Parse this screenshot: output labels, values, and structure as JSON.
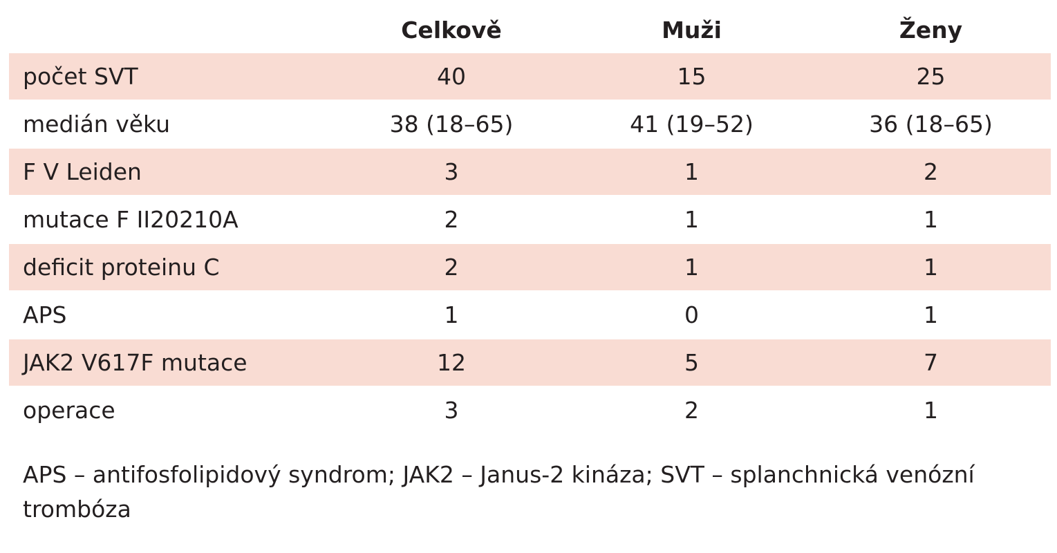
{
  "table": {
    "headers": [
      "",
      "Celkově",
      "Muži",
      "Ženy"
    ],
    "rows": [
      {
        "label": "počet SVT",
        "celkove": "40",
        "muzi": "15",
        "zeny": "25",
        "shaded": true
      },
      {
        "label": "medián věku",
        "celkove": "38 (18–65)",
        "muzi": "41 (19–52)",
        "zeny": "36 (18–65)",
        "shaded": false
      },
      {
        "label": "F V Leiden",
        "celkove": "3",
        "muzi": "1",
        "zeny": "2",
        "shaded": true
      },
      {
        "label": "mutace F II20210A",
        "celkove": "2",
        "muzi": "1",
        "zeny": "1",
        "shaded": false
      },
      {
        "label": "deficit proteinu C",
        "celkove": "2",
        "muzi": "1",
        "zeny": "1",
        "shaded": true
      },
      {
        "label": "APS",
        "celkove": "1",
        "muzi": "0",
        "zeny": "1",
        "shaded": false
      },
      {
        "label": "JAK2 V617F mutace",
        "celkove": "12",
        "muzi": "5",
        "zeny": "7",
        "shaded": true
      },
      {
        "label": "operace",
        "celkove": "3",
        "muzi": "2",
        "zeny": "1",
        "shaded": false
      }
    ],
    "row_shade_color": "#f9dcd3"
  },
  "footnote": "APS – antifosfolipidový syndrom; JAK2 – Janus-2 kináza; SVT – splanchnická venózní trombóza"
}
